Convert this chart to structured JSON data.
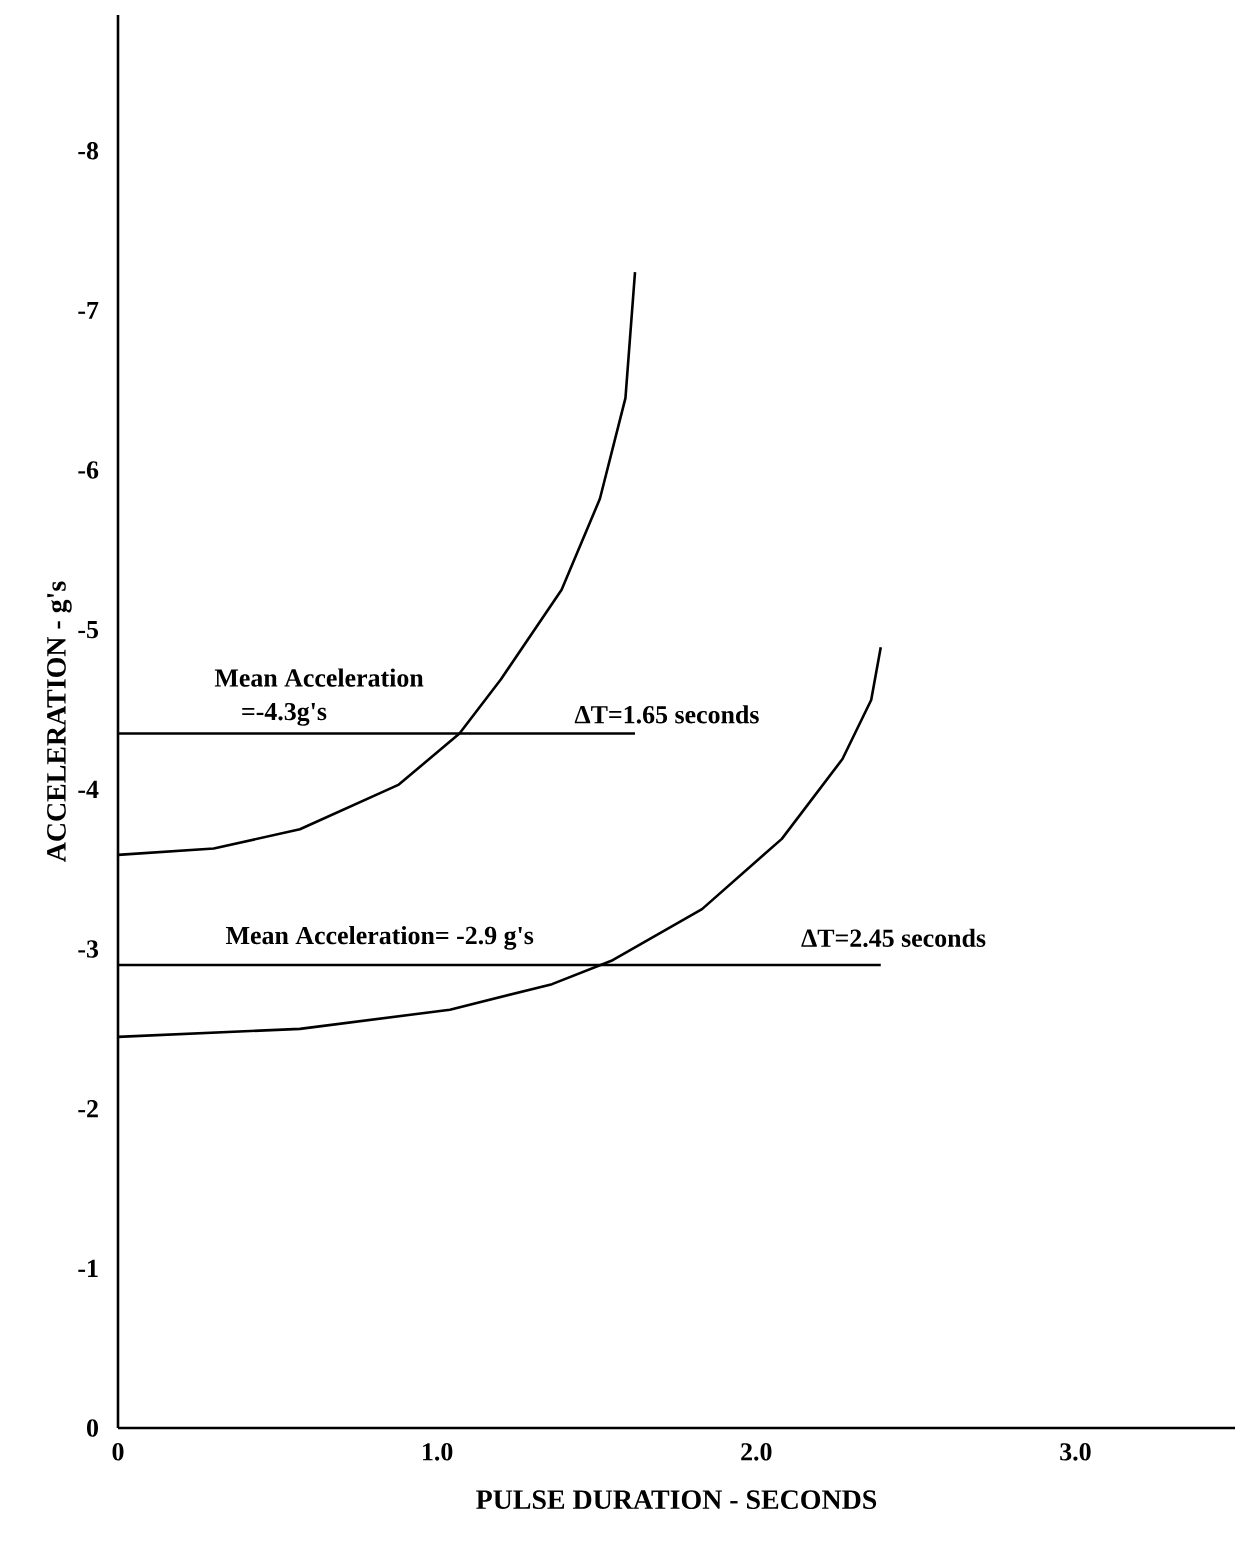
{
  "chart_data": {
    "type": "line",
    "xlabel": "PULSE DURATION - SECONDS",
    "ylabel": "ACCELERATION - g's",
    "xlim": [
      0,
      3.5
    ],
    "ylim": [
      0,
      -8.85
    ],
    "xticks": [
      0,
      {
        "value": 1,
        "label": "1.0"
      },
      {
        "value": 2,
        "label": "2.0"
      },
      {
        "value": 3,
        "label": "3.0"
      }
    ],
    "yticks": [
      0,
      -1,
      -2,
      -3,
      -4,
      -5,
      -6,
      -7,
      -8
    ],
    "grid": false,
    "legend": false,
    "marker": "none",
    "line_style": "solid",
    "series": [
      {
        "color": "#000000",
        "x": [
          0,
          0.3,
          0.57,
          0.88,
          1.07,
          1.2,
          1.39,
          1.51,
          1.59,
          1.62
        ],
        "values": [
          -3.59,
          -3.63,
          -3.75,
          -4.03,
          -4.35,
          -4.69,
          -5.25,
          -5.82,
          -6.45,
          -7.24
        ]
      },
      {
        "color": "#000000",
        "x": [
          0,
          0.57,
          1.04,
          1.36,
          1.55,
          1.83,
          2.08,
          2.27,
          2.36,
          2.39
        ],
        "values": [
          -2.45,
          -2.5,
          -2.62,
          -2.78,
          -2.93,
          -3.25,
          -3.69,
          -4.19,
          -4.56,
          -4.89
        ]
      },
      {
        "color": "#000000",
        "x": [
          0,
          1.62
        ],
        "values": [
          -4.35,
          -4.35
        ]
      },
      {
        "color": "#000000",
        "x": [
          0,
          2.39
        ],
        "values": [
          -2.9,
          -2.9
        ]
      }
    ],
    "annotations": [
      "Mean Acceleration",
      "=-4.3g's",
      "ΔT=1.65 seconds",
      "Mean Acceleration= -2.9 g's",
      "ΔT=2.45 seconds"
    ]
  }
}
